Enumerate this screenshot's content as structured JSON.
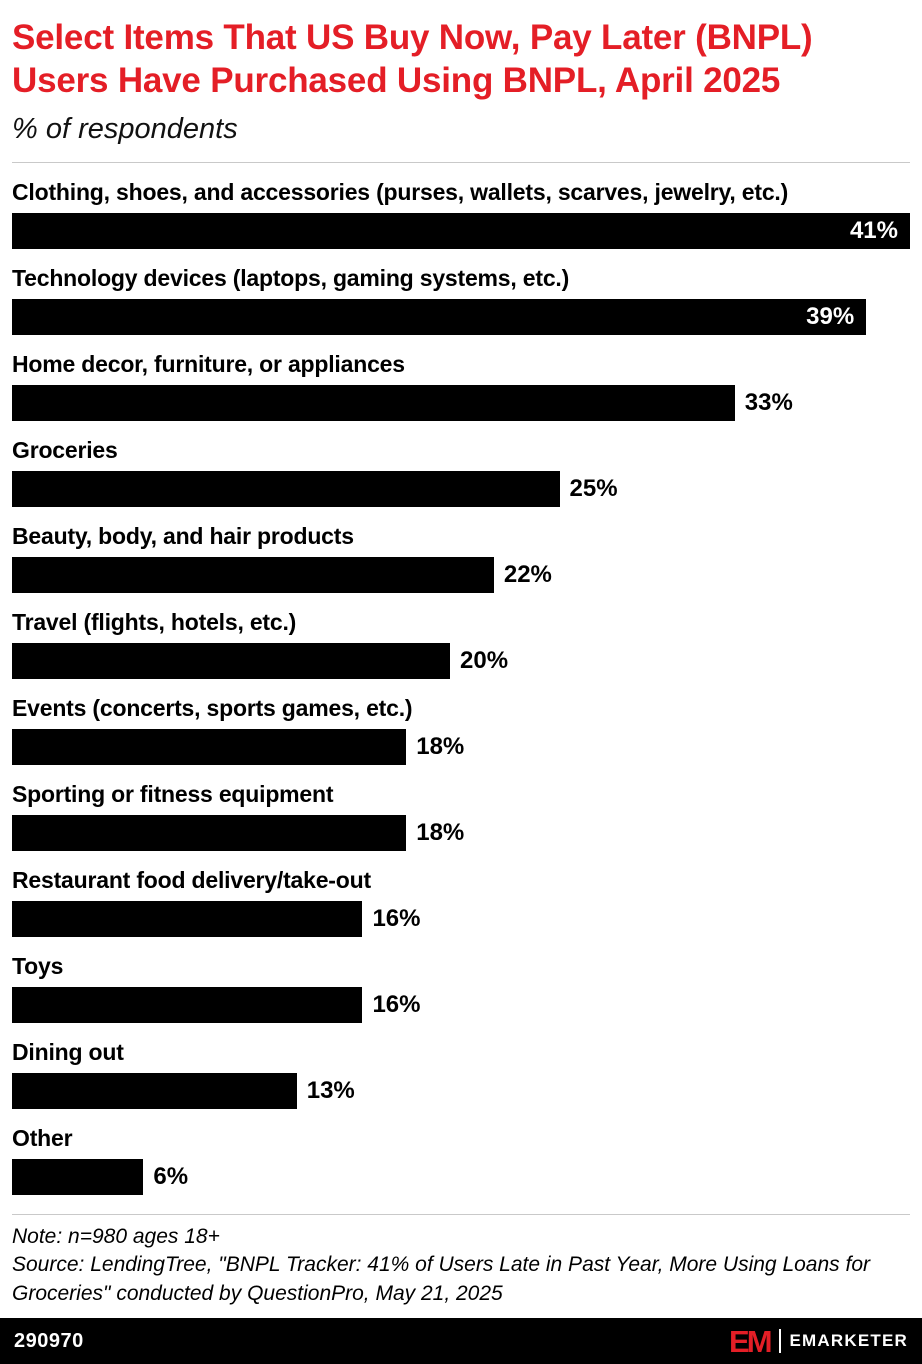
{
  "header": {
    "title": "Select Items That US Buy Now, Pay Later (BNPL) Users Have Purchased Using BNPL, April 2025",
    "subtitle": "% of respondents"
  },
  "chart_data": {
    "type": "bar",
    "orientation": "horizontal",
    "title": "Select Items That US Buy Now, Pay Later (BNPL) Users Have Purchased Using BNPL, April 2025",
    "subtitle": "% of respondents",
    "categories": [
      "Clothing, shoes, and accessories (purses, wallets, scarves, jewelry, etc.)",
      "Technology devices (laptops, gaming systems, etc.)",
      "Home decor, furniture, or appliances",
      "Groceries",
      "Beauty, body, and hair products",
      "Travel (flights, hotels, etc.)",
      "Events (concerts, sports games, etc.)",
      "Sporting or fitness equipment",
      "Restaurant food delivery/take-out",
      "Toys",
      "Dining out",
      "Other"
    ],
    "values": [
      41,
      39,
      33,
      25,
      22,
      20,
      18,
      18,
      16,
      16,
      13,
      6
    ],
    "value_suffix": "%",
    "xlim": [
      0,
      41
    ],
    "bar_color": "#000000",
    "grid": false,
    "legend": false
  },
  "footnotes": {
    "note": "Note: n=980 ages 18+",
    "source": "Source: LendingTree, \"BNPL Tracker: 41% of Users Late in Past Year, More Using Loans for Groceries\" conducted by QuestionPro, May 21, 2025"
  },
  "footer": {
    "chart_id": "290970",
    "brand_monogram": "EM",
    "brand_name": "EMARKETER"
  },
  "colors": {
    "accent_red": "#e41e26",
    "bar": "#000000",
    "background": "#ffffff",
    "footer_bg": "#000000"
  }
}
